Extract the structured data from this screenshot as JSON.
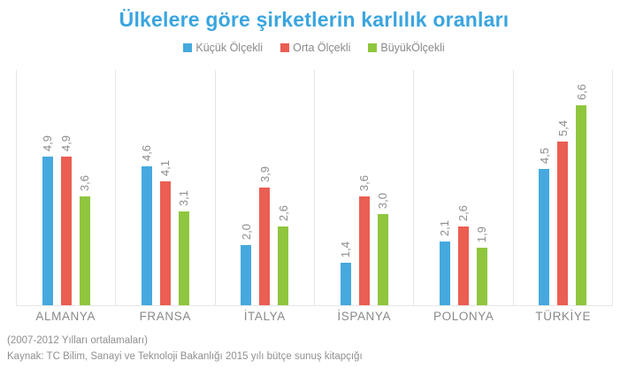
{
  "title": "Ülkelere göre şirketlerin karlılık oranları",
  "legend": [
    {
      "label": "Küçük Ölçekli",
      "color": "#45a9de"
    },
    {
      "label": "Orta Ölçekli",
      "color": "#eb5e52"
    },
    {
      "label": "BüyükÖlçekli",
      "color": "#8fc63e"
    }
  ],
  "chart_data": {
    "type": "bar",
    "title": "Ülkelere göre şirketlerin karlılık oranları",
    "categories": [
      "ALMANYA",
      "FRANSA",
      "İTALYA",
      "İSPANYA",
      "POLONYA",
      "TÜRKİYE"
    ],
    "series": [
      {
        "name": "Küçük Ölçekli",
        "color": "#45a9de",
        "values": [
          4.9,
          4.6,
          2.0,
          1.4,
          2.1,
          4.5
        ]
      },
      {
        "name": "Orta Ölçekli",
        "color": "#eb5e52",
        "values": [
          4.9,
          4.1,
          3.9,
          3.6,
          2.6,
          5.4
        ]
      },
      {
        "name": "BüyükÖlçekli",
        "color": "#8fc63e",
        "values": [
          3.6,
          3.1,
          2.6,
          3.0,
          1.9,
          6.6
        ]
      }
    ],
    "value_labels": [
      [
        "4,9",
        "4,9",
        "3,6"
      ],
      [
        "4,6",
        "4,1",
        "3,1"
      ],
      [
        "2,0",
        "3,9",
        "2,6"
      ],
      [
        "1,4",
        "3,6",
        "3,0"
      ],
      [
        "2,1",
        "2,6",
        "1,9"
      ],
      [
        "4,5",
        "5,4",
        "6,6"
      ]
    ],
    "xlabel": "",
    "ylabel": "",
    "ylim": [
      0,
      7.8
    ],
    "grid": "vertical-panel-separators",
    "legend_position": "top",
    "value_label_style": "rotated-90-above-bar",
    "decimal_separator": ","
  },
  "footnotes": {
    "line1": "(2007-2012 Yılları ortalamaları)",
    "line2": "Kaynak: TC Bilim, Sanayi ve Teknoloji Bakanlığı 2015 yılı bütçe sunuş kitapçığı"
  },
  "colors": {
    "title": "#3aa5e0",
    "gridline": "#e6e6e6",
    "value_label": "#8d8d8d",
    "category_label": "#8a8a8a",
    "footnote": "#909090"
  }
}
